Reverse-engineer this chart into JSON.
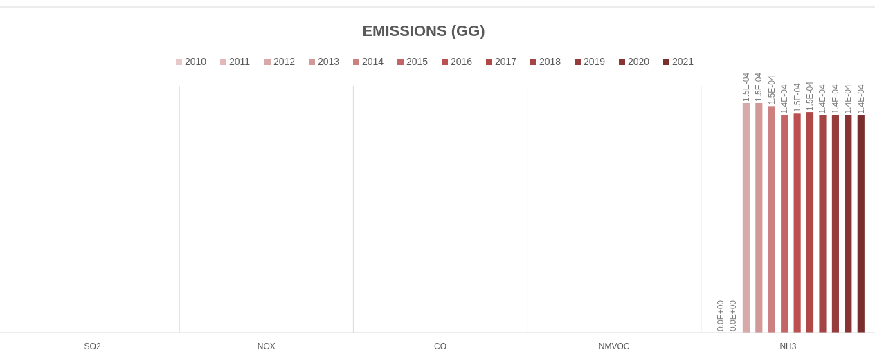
{
  "chart_data": {
    "type": "bar",
    "title": "EMISSIONS (GG)",
    "categories": [
      "SO2",
      "NOX",
      "CO",
      "NMVOC",
      "NH3"
    ],
    "series": [
      {
        "name": "2010",
        "color": "#e8c9c9",
        "values": [
          null,
          null,
          null,
          null,
          0
        ],
        "value_labels": [
          null,
          null,
          null,
          null,
          "0.0E+00"
        ]
      },
      {
        "name": "2011",
        "color": "#e2b8b8",
        "values": [
          null,
          null,
          null,
          null,
          0
        ],
        "value_labels": [
          null,
          null,
          null,
          null,
          "0.0E+00"
        ]
      },
      {
        "name": "2012",
        "color": "#d8a9a9",
        "values": [
          null,
          null,
          null,
          null,
          0.000152
        ],
        "value_labels": [
          null,
          null,
          null,
          null,
          "1.5E-04"
        ]
      },
      {
        "name": "2013",
        "color": "#d39999",
        "values": [
          null,
          null,
          null,
          null,
          0.000152
        ],
        "value_labels": [
          null,
          null,
          null,
          null,
          "1.5E-04"
        ]
      },
      {
        "name": "2014",
        "color": "#cc8080",
        "values": [
          null,
          null,
          null,
          null,
          0.00015
        ],
        "value_labels": [
          null,
          null,
          null,
          null,
          "1.5E-04"
        ]
      },
      {
        "name": "2015",
        "color": "#c46464",
        "values": [
          null,
          null,
          null,
          null,
          0.000144
        ],
        "value_labels": [
          null,
          null,
          null,
          null,
          "1.4E-04"
        ]
      },
      {
        "name": "2016",
        "color": "#bc5050",
        "values": [
          null,
          null,
          null,
          null,
          0.000145
        ],
        "value_labels": [
          null,
          null,
          null,
          null,
          "1.5E-04"
        ]
      },
      {
        "name": "2017",
        "color": "#b04848",
        "values": [
          null,
          null,
          null,
          null,
          0.000146
        ],
        "value_labels": [
          null,
          null,
          null,
          null,
          "1.5E-04"
        ]
      },
      {
        "name": "2018",
        "color": "#a44444",
        "values": [
          null,
          null,
          null,
          null,
          0.000144
        ],
        "value_labels": [
          null,
          null,
          null,
          null,
          "1.4E-04"
        ]
      },
      {
        "name": "2019",
        "color": "#963c3c",
        "values": [
          null,
          null,
          null,
          null,
          0.000144
        ],
        "value_labels": [
          null,
          null,
          null,
          null,
          "1.4E-04"
        ]
      },
      {
        "name": "2020",
        "color": "#883434",
        "values": [
          null,
          null,
          null,
          null,
          0.000144
        ],
        "value_labels": [
          null,
          null,
          null,
          null,
          "1.4E-04"
        ]
      },
      {
        "name": "2021",
        "color": "#7a2e2e",
        "values": [
          null,
          null,
          null,
          null,
          0.000144
        ],
        "value_labels": [
          null,
          null,
          null,
          null,
          "1.4E-04"
        ]
      }
    ],
    "grid": "x",
    "legend": "top",
    "tick_labels": "x"
  }
}
